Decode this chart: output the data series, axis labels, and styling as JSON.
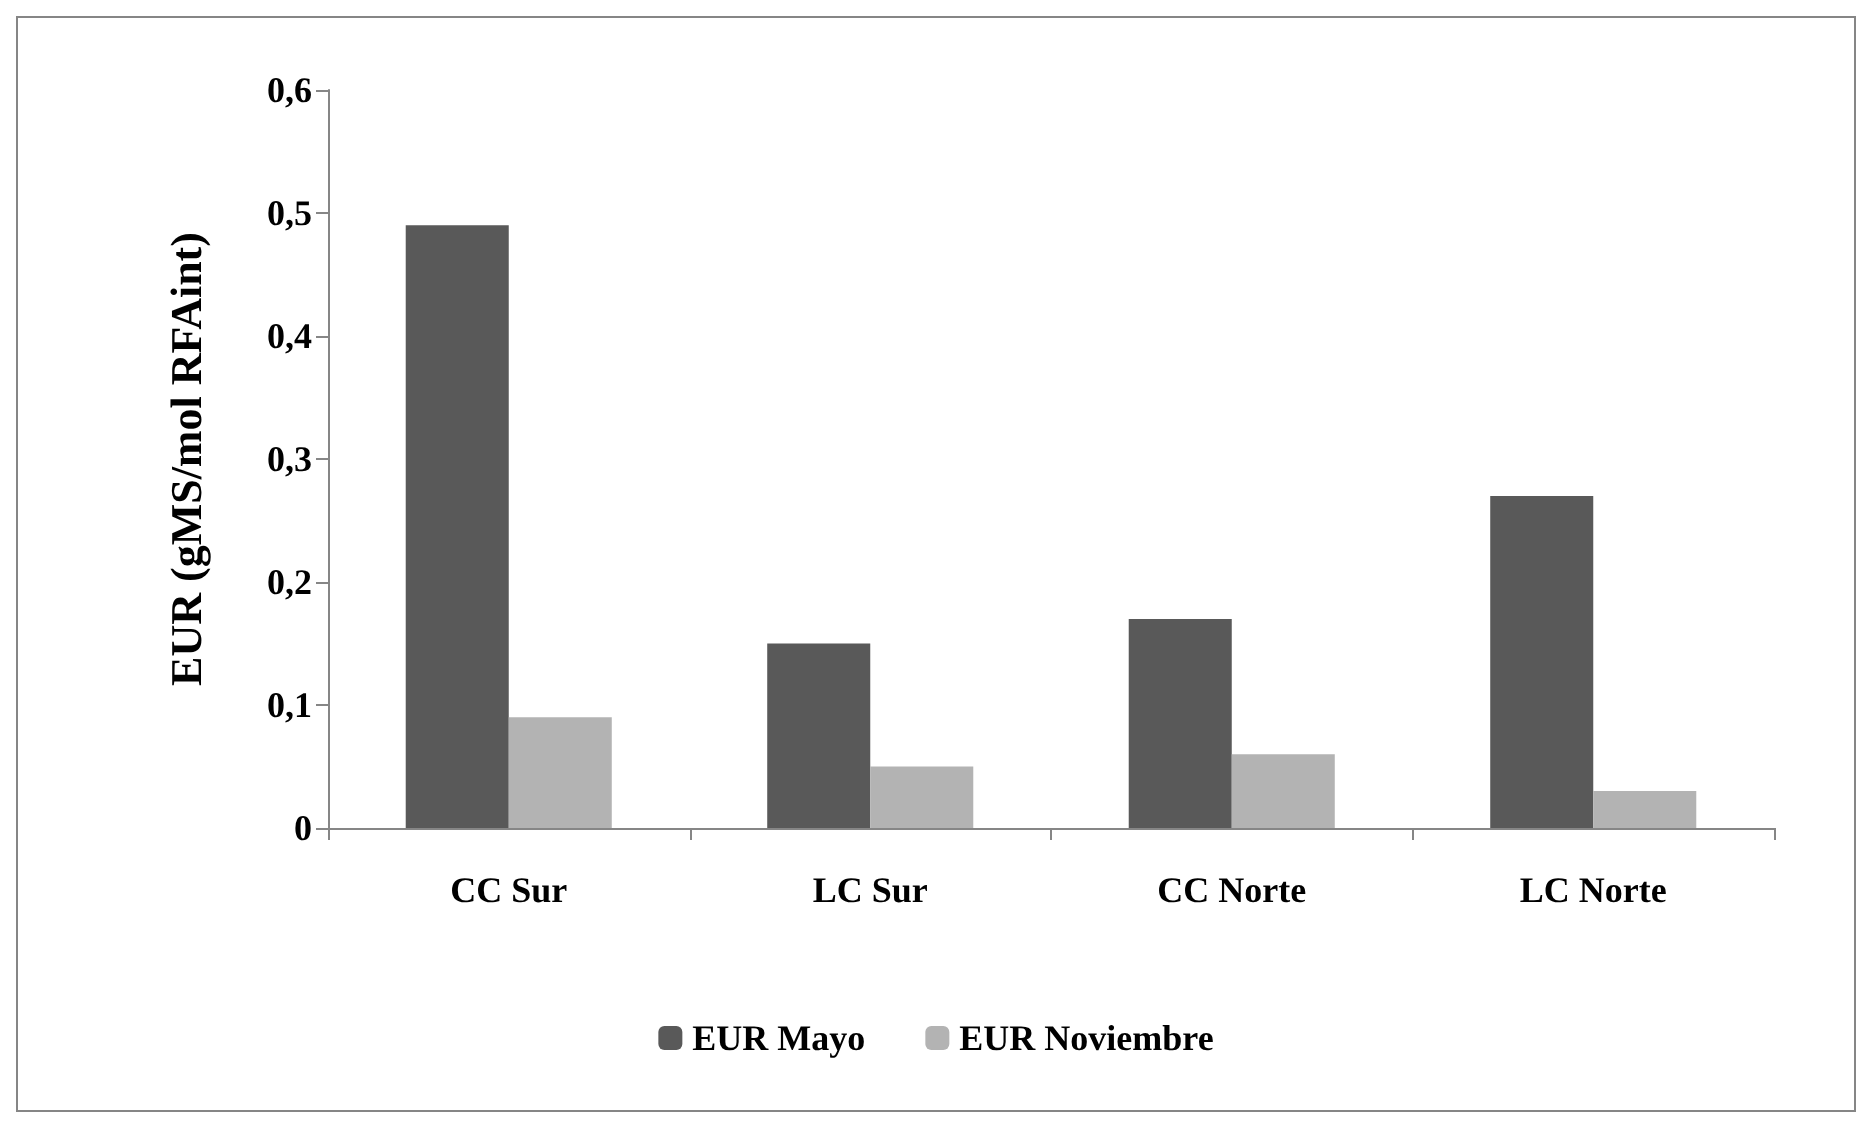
{
  "chart_data": {
    "type": "bar",
    "ylabel": "EUR (gMS/mol RFAint)",
    "categories": [
      "CC Sur",
      "LC Sur",
      "CC Norte",
      "LC Norte"
    ],
    "series": [
      {
        "name": "EUR Mayo",
        "color": "#595959",
        "values": [
          0.49,
          0.15,
          0.17,
          0.27
        ]
      },
      {
        "name": "EUR Noviembre",
        "color": "#b3b3b3",
        "values": [
          0.09,
          0.05,
          0.06,
          0.03
        ]
      }
    ],
    "ylim": [
      0,
      0.6
    ],
    "yticks": [
      {
        "value": 0,
        "label": "0"
      },
      {
        "value": 0.1,
        "label": "0,1"
      },
      {
        "value": 0.2,
        "label": "0,2"
      },
      {
        "value": 0.3,
        "label": "0,3"
      },
      {
        "value": 0.4,
        "label": "0,4"
      },
      {
        "value": 0.5,
        "label": "0,5"
      },
      {
        "value": 0.6,
        "label": "0,6"
      }
    ],
    "grid": false,
    "legend": "bottom"
  }
}
